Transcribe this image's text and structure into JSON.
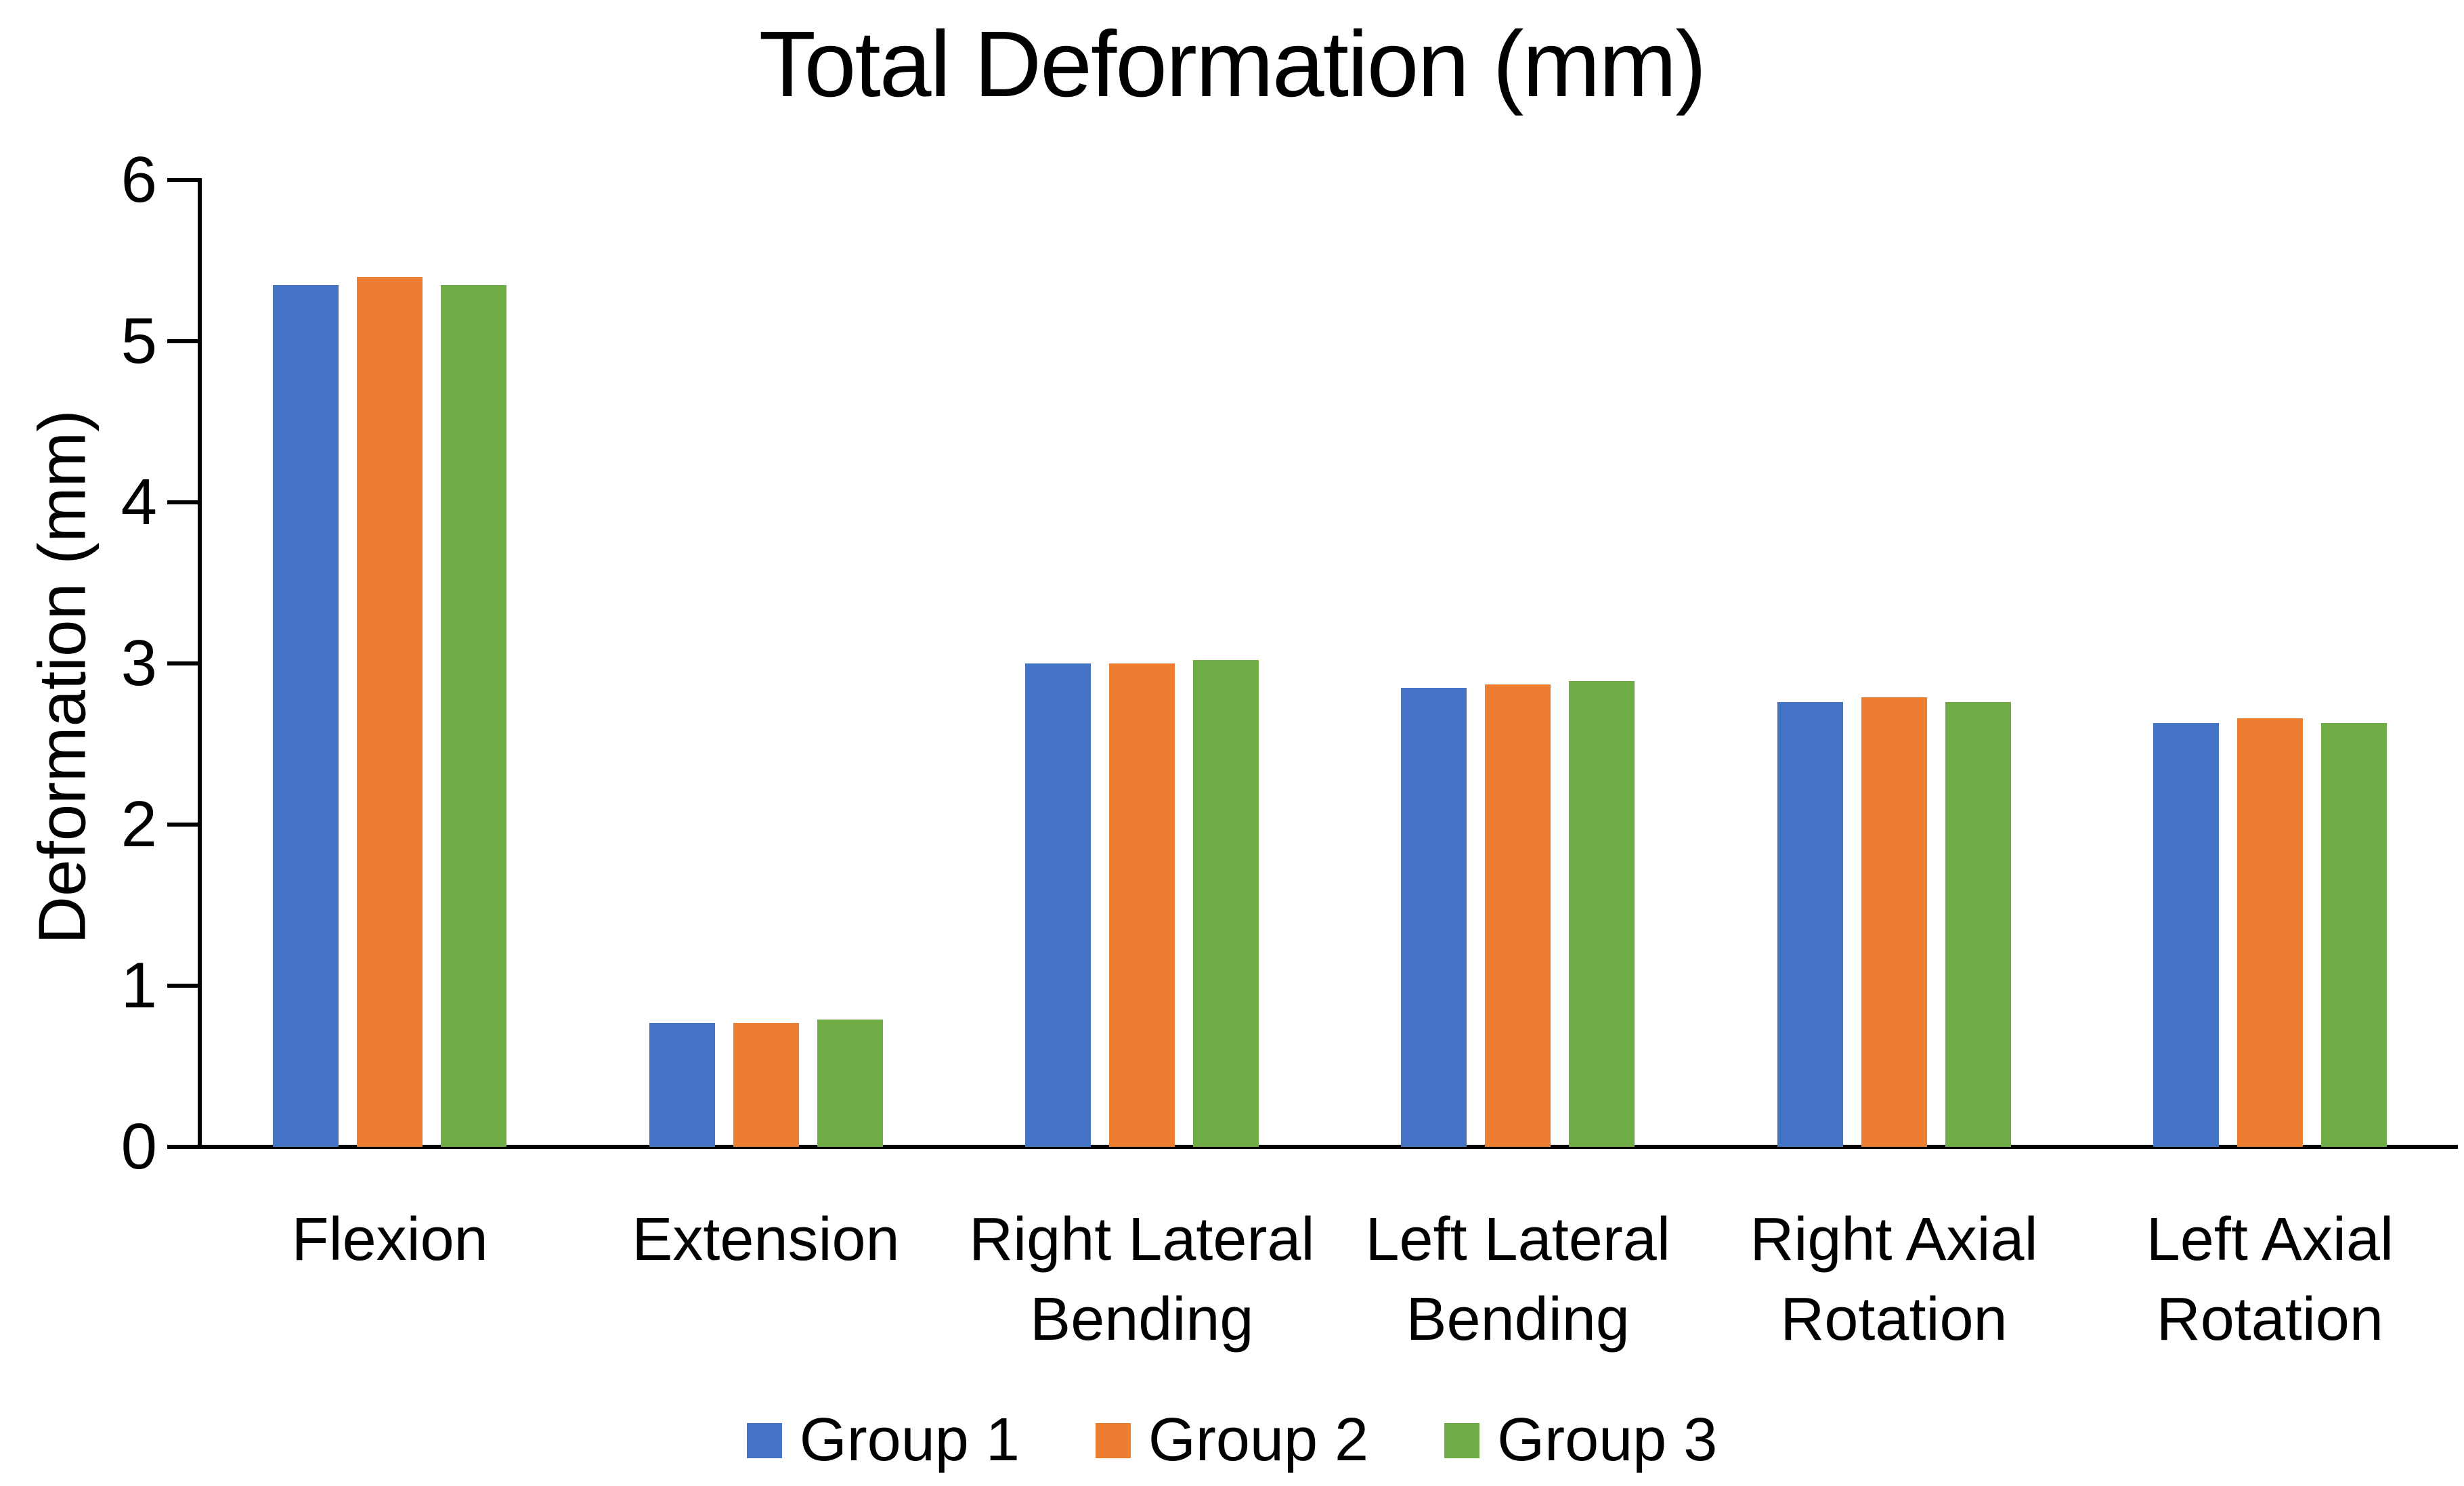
{
  "title": "Total Deformation (mm)",
  "chart_data": {
    "type": "bar",
    "title": "Total Deformation (mm)",
    "xlabel": "",
    "ylabel": "Deformation (mm)",
    "categories": [
      "Flexion",
      "Extension",
      "Right Lateral Bending",
      "Left Lateral Bending",
      "Right Axial Rotation",
      "Left Axial Rotation"
    ],
    "categories_lines": [
      [
        "Flexion"
      ],
      [
        "Extension"
      ],
      [
        "Right Lateral",
        "Bending"
      ],
      [
        "Left Lateral",
        "Bending"
      ],
      [
        "Right Axial",
        "Rotation"
      ],
      [
        "Left Axial",
        "Rotation"
      ]
    ],
    "series": [
      {
        "name": "Group 1",
        "color": "#4472C4",
        "values": [
          5.35,
          0.77,
          3.0,
          2.85,
          2.76,
          2.63
        ]
      },
      {
        "name": "Group 2",
        "color": "#ED7D31",
        "values": [
          5.4,
          0.77,
          3.0,
          2.87,
          2.79,
          2.66
        ]
      },
      {
        "name": "Group 3",
        "color": "#70AD47",
        "values": [
          5.35,
          0.79,
          3.02,
          2.89,
          2.76,
          2.63
        ]
      }
    ],
    "ylim": [
      0,
      6
    ],
    "yticks": [
      0,
      1,
      2,
      3,
      4,
      5,
      6
    ],
    "grid": false,
    "legend_position": "bottom",
    "colors": {
      "axis": "#000000",
      "text": "#000000",
      "background": "#FFFFFF"
    }
  }
}
